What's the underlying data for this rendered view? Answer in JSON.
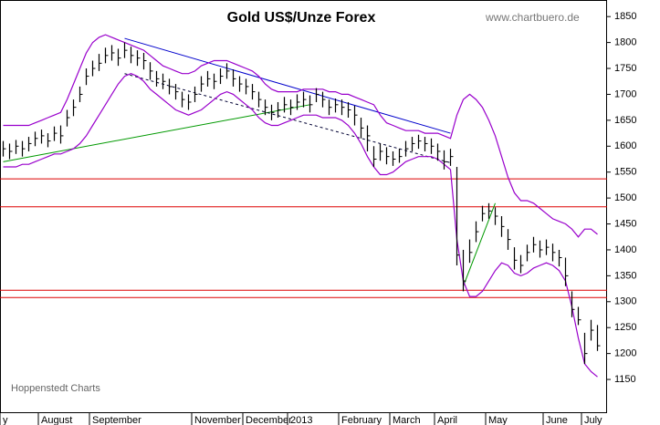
{
  "chart_data": {
    "type": "ohlc",
    "title": "Gold US$/Unze Forex",
    "source": "www.chartbuero.de",
    "credit": "Hoppenstedt Charts",
    "categories": [
      "y",
      null,
      null,
      null,
      null,
      null,
      "August",
      null,
      null,
      null,
      null,
      null,
      null,
      null,
      "September",
      null,
      null,
      null,
      null,
      null,
      null,
      null,
      null,
      null,
      null,
      null,
      null,
      null,
      null,
      null,
      "November",
      null,
      null,
      null,
      null,
      null,
      null,
      null,
      "December",
      null,
      null,
      null,
      null,
      null,
      null,
      "2013",
      null,
      null,
      null,
      null,
      null,
      null,
      null,
      "February",
      null,
      null,
      null,
      null,
      null,
      null,
      null,
      "March",
      null,
      null,
      null,
      null,
      null,
      null,
      "April",
      null,
      null,
      null,
      null,
      null,
      null,
      null,
      "May",
      null,
      null,
      null,
      null,
      null,
      null,
      null,
      null,
      "June",
      null,
      null,
      null,
      null,
      null,
      "July",
      null,
      null
    ],
    "close": [
      1595,
      1590,
      1600,
      1595,
      1605,
      1615,
      1620,
      1610,
      1625,
      1620,
      1655,
      1675,
      1700,
      1735,
      1750,
      1760,
      1775,
      1780,
      1770,
      1785,
      1775,
      1770,
      1765,
      1745,
      1730,
      1725,
      1715,
      1705,
      1690,
      1685,
      1700,
      1720,
      1730,
      1725,
      1735,
      1745,
      1730,
      1720,
      1715,
      1705,
      1690,
      1675,
      1665,
      1670,
      1680,
      1675,
      1685,
      1690,
      1680,
      1700,
      1690,
      1675,
      1680,
      1675,
      1670,
      1660,
      1635,
      1620,
      1575,
      1590,
      1580,
      1575,
      1580,
      1595,
      1605,
      1610,
      1605,
      1600,
      1590,
      1570,
      1580,
      1390,
      1340,
      1395,
      1435,
      1470,
      1475,
      1465,
      1445,
      1420,
      1380,
      1370,
      1395,
      1410,
      1400,
      1405,
      1395,
      1385,
      1350,
      1285,
      1265,
      1200,
      1245,
      1215
    ],
    "high": [
      1610,
      1605,
      1612,
      1610,
      1618,
      1628,
      1632,
      1625,
      1638,
      1640,
      1670,
      1690,
      1715,
      1750,
      1765,
      1778,
      1790,
      1795,
      1788,
      1800,
      1792,
      1785,
      1780,
      1762,
      1745,
      1740,
      1730,
      1720,
      1705,
      1700,
      1715,
      1735,
      1745,
      1740,
      1750,
      1760,
      1748,
      1735,
      1730,
      1720,
      1705,
      1690,
      1680,
      1685,
      1695,
      1690,
      1700,
      1705,
      1698,
      1712,
      1705,
      1690,
      1692,
      1690,
      1685,
      1678,
      1655,
      1640,
      1600,
      1605,
      1598,
      1590,
      1595,
      1610,
      1618,
      1622,
      1618,
      1615,
      1605,
      1592,
      1595,
      1560,
      1400,
      1420,
      1455,
      1485,
      1490,
      1482,
      1465,
      1440,
      1405,
      1390,
      1410,
      1425,
      1418,
      1420,
      1412,
      1400,
      1385,
      1320,
      1290,
      1240,
      1265,
      1255
    ],
    "low": [
      1580,
      1575,
      1585,
      1580,
      1590,
      1600,
      1605,
      1598,
      1610,
      1605,
      1638,
      1658,
      1685,
      1718,
      1735,
      1745,
      1760,
      1765,
      1755,
      1770,
      1760,
      1755,
      1748,
      1728,
      1715,
      1710,
      1700,
      1690,
      1675,
      1670,
      1685,
      1705,
      1715,
      1710,
      1720,
      1730,
      1715,
      1705,
      1700,
      1690,
      1675,
      1660,
      1650,
      1655,
      1665,
      1660,
      1670,
      1675,
      1665,
      1685,
      1675,
      1660,
      1665,
      1660,
      1655,
      1640,
      1615,
      1590,
      1560,
      1572,
      1565,
      1562,
      1568,
      1580,
      1590,
      1595,
      1590,
      1585,
      1572,
      1555,
      1562,
      1370,
      1320,
      1375,
      1415,
      1455,
      1460,
      1448,
      1425,
      1400,
      1362,
      1355,
      1378,
      1395,
      1385,
      1390,
      1378,
      1368,
      1330,
      1270,
      1255,
      1180,
      1225,
      1205
    ],
    "color": "#000000",
    "upper_band": [
      1640,
      1640,
      1640,
      1640,
      1640,
      1645,
      1650,
      1655,
      1660,
      1665,
      1690,
      1720,
      1750,
      1780,
      1800,
      1810,
      1815,
      1810,
      1805,
      1800,
      1795,
      1790,
      1785,
      1775,
      1765,
      1755,
      1750,
      1745,
      1740,
      1740,
      1745,
      1755,
      1760,
      1765,
      1765,
      1765,
      1760,
      1755,
      1750,
      1745,
      1735,
      1720,
      1710,
      1705,
      1705,
      1705,
      1705,
      1710,
      1710,
      1710,
      1710,
      1705,
      1705,
      1700,
      1700,
      1695,
      1690,
      1685,
      1680,
      1660,
      1645,
      1640,
      1635,
      1630,
      1630,
      1630,
      1625,
      1625,
      1625,
      1620,
      1615,
      1660,
      1690,
      1700,
      1690,
      1675,
      1650,
      1620,
      1580,
      1540,
      1510,
      1495,
      1495,
      1490,
      1480,
      1470,
      1460,
      1455,
      1450,
      1440,
      1425,
      1440,
      1440,
      1430
    ],
    "lower_band": [
      1560,
      1560,
      1560,
      1565,
      1565,
      1570,
      1575,
      1580,
      1585,
      1585,
      1590,
      1595,
      1605,
      1620,
      1640,
      1660,
      1680,
      1700,
      1720,
      1735,
      1740,
      1735,
      1725,
      1710,
      1700,
      1690,
      1680,
      1670,
      1665,
      1660,
      1665,
      1670,
      1680,
      1690,
      1700,
      1705,
      1700,
      1690,
      1680,
      1670,
      1655,
      1645,
      1640,
      1640,
      1645,
      1650,
      1655,
      1660,
      1660,
      1660,
      1655,
      1655,
      1655,
      1650,
      1640,
      1625,
      1605,
      1580,
      1560,
      1545,
      1545,
      1550,
      1560,
      1570,
      1575,
      1580,
      1580,
      1580,
      1575,
      1565,
      1555,
      1420,
      1340,
      1310,
      1310,
      1320,
      1340,
      1360,
      1375,
      1370,
      1355,
      1350,
      1355,
      1365,
      1370,
      1375,
      1370,
      1360,
      1340,
      1290,
      1230,
      1180,
      1165,
      1155
    ],
    "band_color": "#9900cc",
    "hlines": [
      1537,
      1483,
      1322,
      1308
    ],
    "hline_color": "#dd0000",
    "trendlines": [
      {
        "from": [
          19,
          1808
        ],
        "to": [
          70,
          1625
        ],
        "color": "#0000cc",
        "dashed": false
      },
      {
        "from": [
          0,
          1570
        ],
        "to": [
          48,
          1680
        ],
        "color": "#009900",
        "dashed": false
      },
      {
        "from": [
          19,
          1740
        ],
        "to": [
          70,
          1568
        ],
        "color": "#000033",
        "dashed": true
      },
      {
        "from": [
          72,
          1330
        ],
        "to": [
          77,
          1490
        ],
        "color": "#009900",
        "dashed": false
      }
    ],
    "ylim": [
      1085,
      1882
    ],
    "yticks": [
      1150,
      1200,
      1250,
      1300,
      1350,
      1400,
      1450,
      1500,
      1550,
      1600,
      1650,
      1700,
      1750,
      1800,
      1850
    ],
    "axis_side": "right"
  }
}
